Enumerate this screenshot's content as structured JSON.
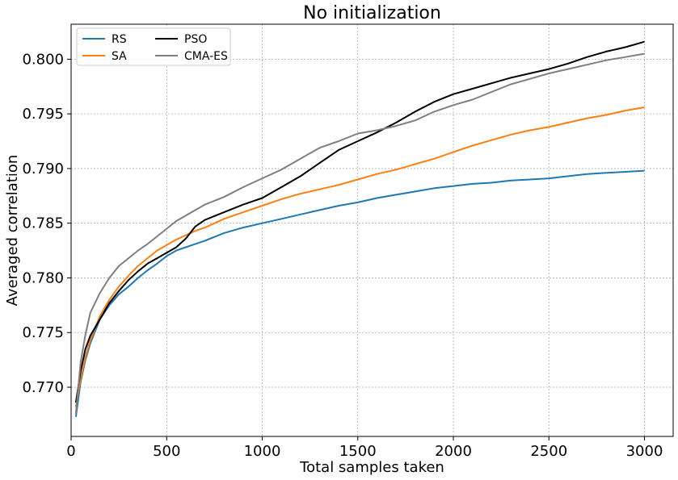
{
  "chart_data": {
    "type": "line",
    "title": "No initialization",
    "xlabel": "Total samples taken",
    "ylabel": "Averaged correlation",
    "xlim": [
      0,
      3150
    ],
    "ylim": [
      0.7655,
      0.8032
    ],
    "grid": true,
    "legend_position": "top-left",
    "xticks": [
      0,
      500,
      1000,
      1500,
      2000,
      2500,
      3000
    ],
    "xtick_labels": [
      "0",
      "500",
      "1000",
      "1500",
      "2000",
      "2500",
      "3000"
    ],
    "yticks": [
      0.77,
      0.775,
      0.78,
      0.785,
      0.79,
      0.795,
      0.8
    ],
    "ytick_labels": [
      "0.770",
      "0.775",
      "0.780",
      "0.785",
      "0.790",
      "0.795",
      "0.800"
    ],
    "x": [
      25,
      50,
      75,
      100,
      150,
      200,
      250,
      300,
      350,
      400,
      450,
      500,
      550,
      600,
      650,
      700,
      800,
      900,
      1000,
      1100,
      1200,
      1300,
      1400,
      1500,
      1600,
      1700,
      1800,
      1900,
      2000,
      2100,
      2200,
      2300,
      2400,
      2500,
      2600,
      2700,
      2800,
      2900,
      3000
    ],
    "series": [
      {
        "name": "RS",
        "color": "#1f77b4",
        "values": [
          0.7673,
          0.7705,
          0.7725,
          0.774,
          0.7762,
          0.7775,
          0.7785,
          0.7792,
          0.78,
          0.7807,
          0.7813,
          0.782,
          0.7825,
          0.7828,
          0.7831,
          0.7834,
          0.7841,
          0.7846,
          0.785,
          0.7854,
          0.7858,
          0.7862,
          0.7866,
          0.7869,
          0.7873,
          0.7876,
          0.7879,
          0.7882,
          0.7884,
          0.7886,
          0.7887,
          0.7889,
          0.789,
          0.7891,
          0.7893,
          0.7895,
          0.7896,
          0.7897,
          0.7898
        ]
      },
      {
        "name": "SA",
        "color": "#ff7f0e",
        "values": [
          0.7682,
          0.7708,
          0.7728,
          0.7743,
          0.7765,
          0.778,
          0.7792,
          0.7802,
          0.7811,
          0.7818,
          0.7825,
          0.783,
          0.7835,
          0.7839,
          0.7843,
          0.7846,
          0.7854,
          0.786,
          0.7866,
          0.7872,
          0.7877,
          0.7881,
          0.7885,
          0.789,
          0.7895,
          0.7899,
          0.7904,
          0.7909,
          0.7915,
          0.7921,
          0.7926,
          0.7931,
          0.7935,
          0.7938,
          0.7942,
          0.7946,
          0.7949,
          0.7953,
          0.7956
        ]
      },
      {
        "name": "PSO",
        "color": "#000000",
        "values": [
          0.7686,
          0.7715,
          0.7735,
          0.7747,
          0.7762,
          0.7777,
          0.7788,
          0.7798,
          0.7806,
          0.7813,
          0.7818,
          0.7823,
          0.7828,
          0.7836,
          0.7847,
          0.7853,
          0.786,
          0.7867,
          0.7873,
          0.7883,
          0.7893,
          0.7905,
          0.7917,
          0.7925,
          0.7933,
          0.7942,
          0.7952,
          0.7961,
          0.7968,
          0.7973,
          0.7978,
          0.7983,
          0.7987,
          0.7991,
          0.7996,
          0.8002,
          0.8007,
          0.8011,
          0.8016
        ]
      },
      {
        "name": "CMA-ES",
        "color": "#7f7f7f",
        "values": [
          0.7676,
          0.7723,
          0.7748,
          0.7768,
          0.7786,
          0.78,
          0.7811,
          0.7818,
          0.7825,
          0.7831,
          0.7838,
          0.7845,
          0.7852,
          0.7857,
          0.7862,
          0.7867,
          0.7874,
          0.7883,
          0.7891,
          0.7899,
          0.7909,
          0.7919,
          0.7925,
          0.7932,
          0.7935,
          0.7939,
          0.7944,
          0.7952,
          0.7958,
          0.7963,
          0.797,
          0.7977,
          0.7982,
          0.7987,
          0.7991,
          0.7995,
          0.7999,
          0.8002,
          0.8005
        ]
      }
    ]
  }
}
